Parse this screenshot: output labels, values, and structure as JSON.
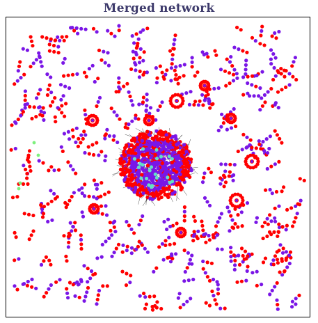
{
  "figure": {
    "title": "Merged network"
  },
  "colors": {
    "red": "#ff0000",
    "purple": "#7a16e6",
    "cyan": "#63e0c5",
    "green": "#7df07d",
    "edge": "#222222",
    "title": "#3d3a6b"
  }
}
